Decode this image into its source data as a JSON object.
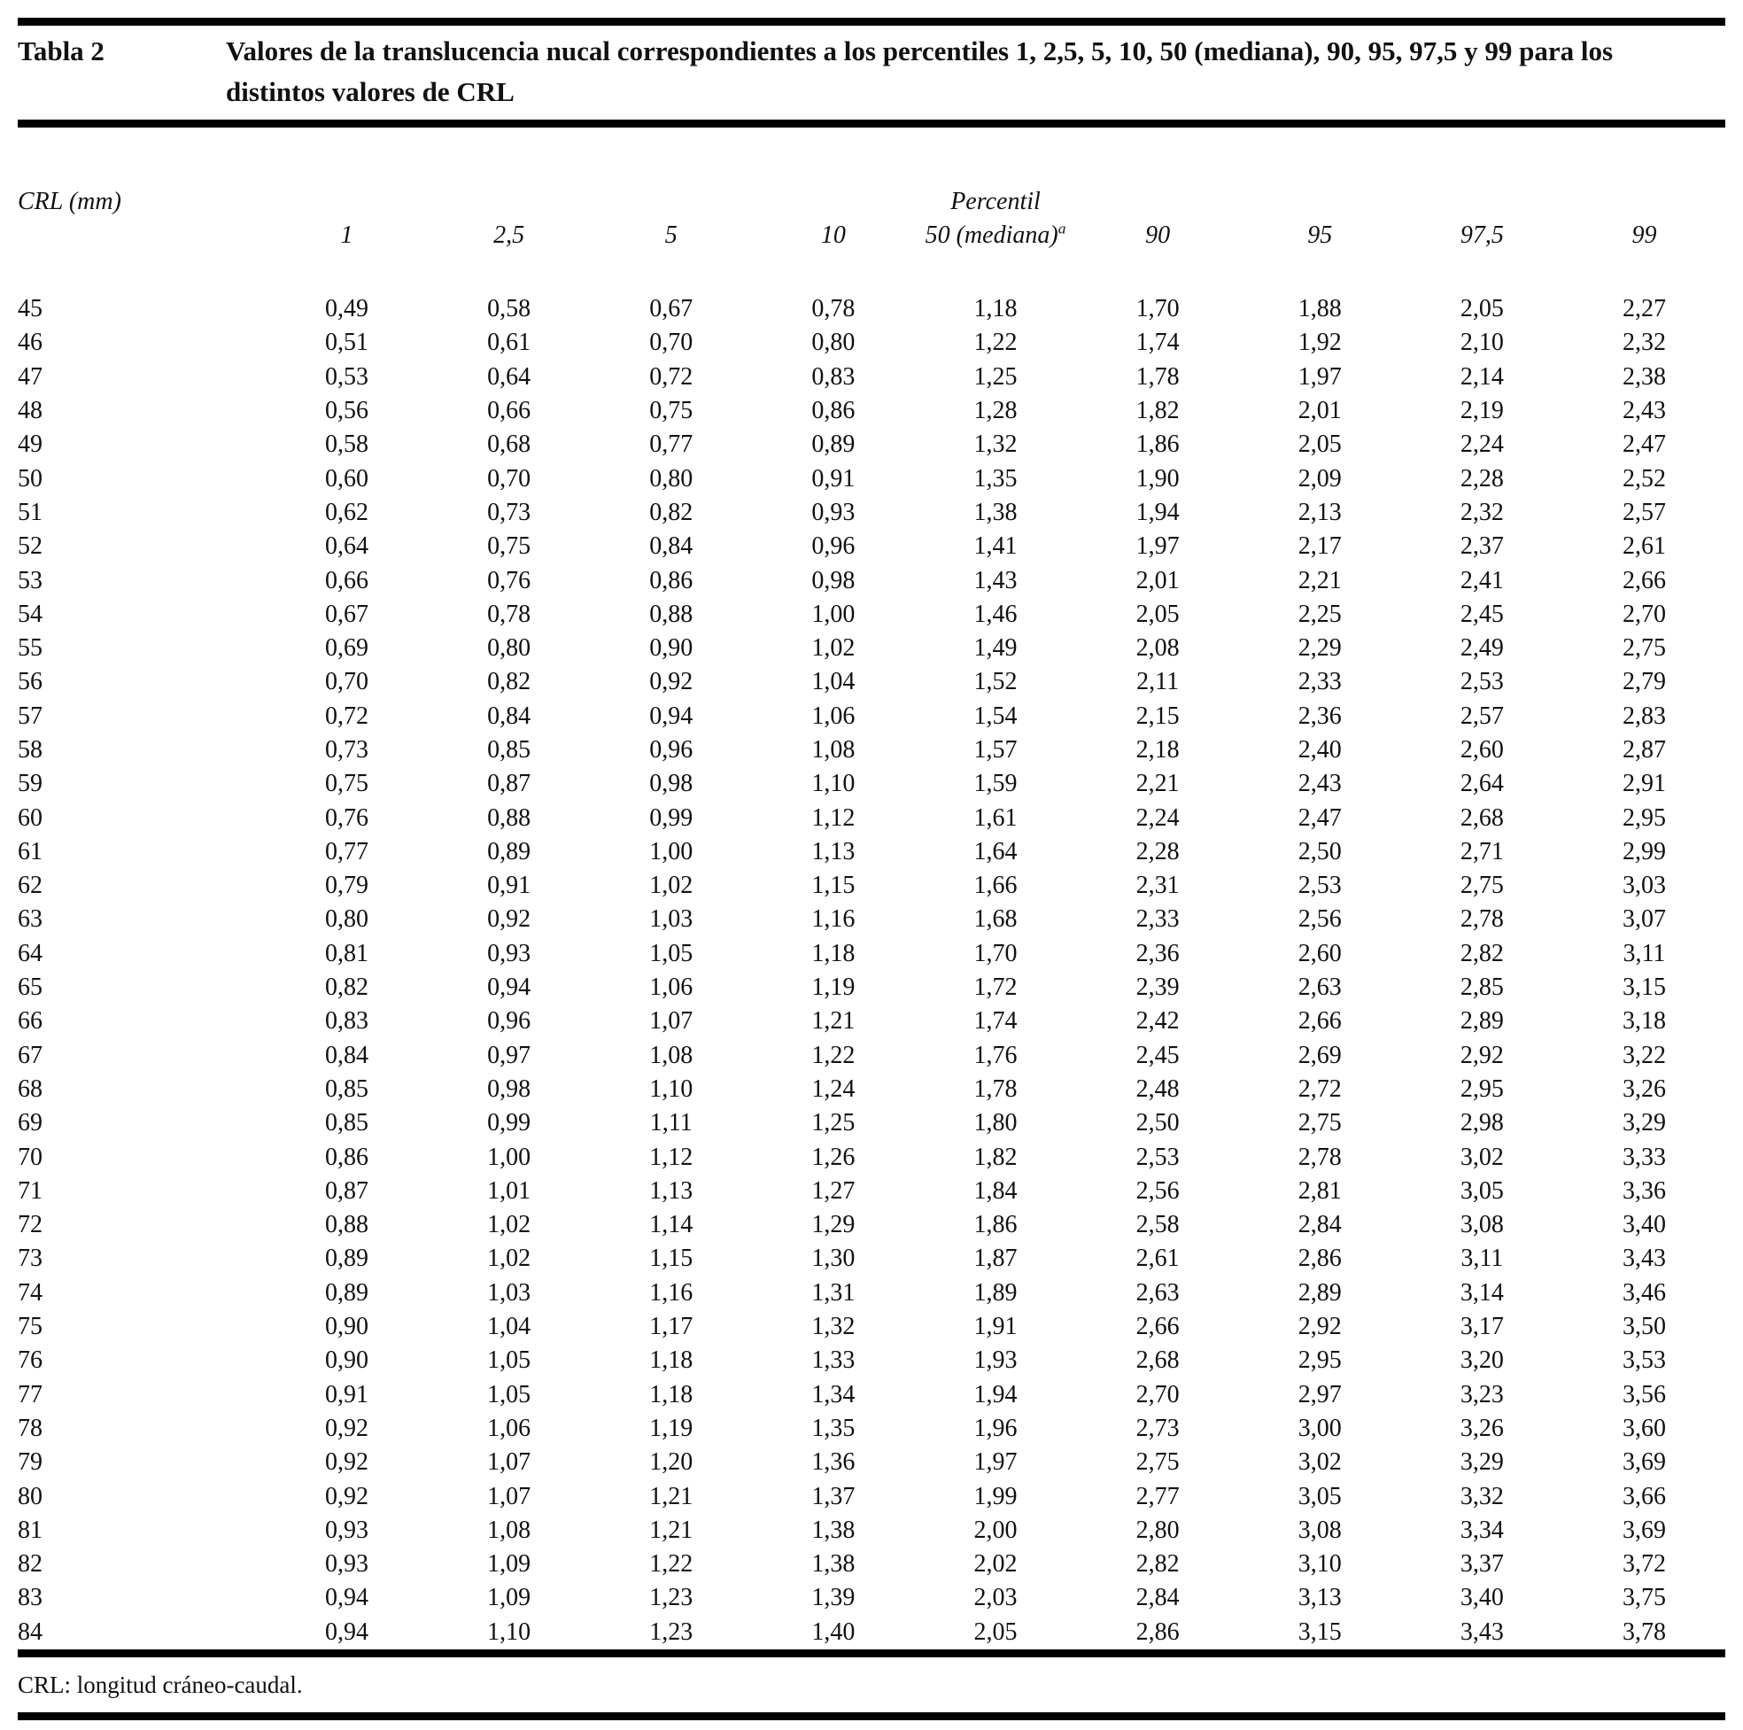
{
  "table": {
    "label": "Tabla 2",
    "title": "Valores de la translucencia nucal correspondientes a los percentiles 1, 2,5, 5, 10, 50 (mediana), 90, 95, 97,5 y 99 para los distintos valores de CRL",
    "col_group_left": "CRL (mm)",
    "col_group_right": "Percentil",
    "columns": [
      {
        "label": "1"
      },
      {
        "label": "2,5"
      },
      {
        "label": "5"
      },
      {
        "label": "10"
      },
      {
        "label": "50 (mediana)",
        "sup": "a"
      },
      {
        "label": "90"
      },
      {
        "label": "95"
      },
      {
        "label": "97,5"
      },
      {
        "label": "99"
      }
    ],
    "rows": [
      {
        "crl": "45",
        "values": [
          "0,49",
          "0,58",
          "0,67",
          "0,78",
          "1,18",
          "1,70",
          "1,88",
          "2,05",
          "2,27"
        ]
      },
      {
        "crl": "46",
        "values": [
          "0,51",
          "0,61",
          "0,70",
          "0,80",
          "1,22",
          "1,74",
          "1,92",
          "2,10",
          "2,32"
        ]
      },
      {
        "crl": "47",
        "values": [
          "0,53",
          "0,64",
          "0,72",
          "0,83",
          "1,25",
          "1,78",
          "1,97",
          "2,14",
          "2,38"
        ]
      },
      {
        "crl": "48",
        "values": [
          "0,56",
          "0,66",
          "0,75",
          "0,86",
          "1,28",
          "1,82",
          "2,01",
          "2,19",
          "2,43"
        ]
      },
      {
        "crl": "49",
        "values": [
          "0,58",
          "0,68",
          "0,77",
          "0,89",
          "1,32",
          "1,86",
          "2,05",
          "2,24",
          "2,47"
        ]
      },
      {
        "crl": "50",
        "values": [
          "0,60",
          "0,70",
          "0,80",
          "0,91",
          "1,35",
          "1,90",
          "2,09",
          "2,28",
          "2,52"
        ]
      },
      {
        "crl": "51",
        "values": [
          "0,62",
          "0,73",
          "0,82",
          "0,93",
          "1,38",
          "1,94",
          "2,13",
          "2,32",
          "2,57"
        ]
      },
      {
        "crl": "52",
        "values": [
          "0,64",
          "0,75",
          "0,84",
          "0,96",
          "1,41",
          "1,97",
          "2,17",
          "2,37",
          "2,61"
        ]
      },
      {
        "crl": "53",
        "values": [
          "0,66",
          "0,76",
          "0,86",
          "0,98",
          "1,43",
          "2,01",
          "2,21",
          "2,41",
          "2,66"
        ]
      },
      {
        "crl": "54",
        "values": [
          "0,67",
          "0,78",
          "0,88",
          "1,00",
          "1,46",
          "2,05",
          "2,25",
          "2,45",
          "2,70"
        ]
      },
      {
        "crl": "55",
        "values": [
          "0,69",
          "0,80",
          "0,90",
          "1,02",
          "1,49",
          "2,08",
          "2,29",
          "2,49",
          "2,75"
        ]
      },
      {
        "crl": "56",
        "values": [
          "0,70",
          "0,82",
          "0,92",
          "1,04",
          "1,52",
          "2,11",
          "2,33",
          "2,53",
          "2,79"
        ]
      },
      {
        "crl": "57",
        "values": [
          "0,72",
          "0,84",
          "0,94",
          "1,06",
          "1,54",
          "2,15",
          "2,36",
          "2,57",
          "2,83"
        ]
      },
      {
        "crl": "58",
        "values": [
          "0,73",
          "0,85",
          "0,96",
          "1,08",
          "1,57",
          "2,18",
          "2,40",
          "2,60",
          "2,87"
        ]
      },
      {
        "crl": "59",
        "values": [
          "0,75",
          "0,87",
          "0,98",
          "1,10",
          "1,59",
          "2,21",
          "2,43",
          "2,64",
          "2,91"
        ]
      },
      {
        "crl": "60",
        "values": [
          "0,76",
          "0,88",
          "0,99",
          "1,12",
          "1,61",
          "2,24",
          "2,47",
          "2,68",
          "2,95"
        ]
      },
      {
        "crl": "61",
        "values": [
          "0,77",
          "0,89",
          "1,00",
          "1,13",
          "1,64",
          "2,28",
          "2,50",
          "2,71",
          "2,99"
        ]
      },
      {
        "crl": "62",
        "values": [
          "0,79",
          "0,91",
          "1,02",
          "1,15",
          "1,66",
          "2,31",
          "2,53",
          "2,75",
          "3,03"
        ]
      },
      {
        "crl": "63",
        "values": [
          "0,80",
          "0,92",
          "1,03",
          "1,16",
          "1,68",
          "2,33",
          "2,56",
          "2,78",
          "3,07"
        ]
      },
      {
        "crl": "64",
        "values": [
          "0,81",
          "0,93",
          "1,05",
          "1,18",
          "1,70",
          "2,36",
          "2,60",
          "2,82",
          "3,11"
        ]
      },
      {
        "crl": "65",
        "values": [
          "0,82",
          "0,94",
          "1,06",
          "1,19",
          "1,72",
          "2,39",
          "2,63",
          "2,85",
          "3,15"
        ]
      },
      {
        "crl": "66",
        "values": [
          "0,83",
          "0,96",
          "1,07",
          "1,21",
          "1,74",
          "2,42",
          "2,66",
          "2,89",
          "3,18"
        ]
      },
      {
        "crl": "67",
        "values": [
          "0,84",
          "0,97",
          "1,08",
          "1,22",
          "1,76",
          "2,45",
          "2,69",
          "2,92",
          "3,22"
        ]
      },
      {
        "crl": "68",
        "values": [
          "0,85",
          "0,98",
          "1,10",
          "1,24",
          "1,78",
          "2,48",
          "2,72",
          "2,95",
          "3,26"
        ]
      },
      {
        "crl": "69",
        "values": [
          "0,85",
          "0,99",
          "1,11",
          "1,25",
          "1,80",
          "2,50",
          "2,75",
          "2,98",
          "3,29"
        ]
      },
      {
        "crl": "70",
        "values": [
          "0,86",
          "1,00",
          "1,12",
          "1,26",
          "1,82",
          "2,53",
          "2,78",
          "3,02",
          "3,33"
        ]
      },
      {
        "crl": "71",
        "values": [
          "0,87",
          "1,01",
          "1,13",
          "1,27",
          "1,84",
          "2,56",
          "2,81",
          "3,05",
          "3,36"
        ]
      },
      {
        "crl": "72",
        "values": [
          "0,88",
          "1,02",
          "1,14",
          "1,29",
          "1,86",
          "2,58",
          "2,84",
          "3,08",
          "3,40"
        ]
      },
      {
        "crl": "73",
        "values": [
          "0,89",
          "1,02",
          "1,15",
          "1,30",
          "1,87",
          "2,61",
          "2,86",
          "3,11",
          "3,43"
        ]
      },
      {
        "crl": "74",
        "values": [
          "0,89",
          "1,03",
          "1,16",
          "1,31",
          "1,89",
          "2,63",
          "2,89",
          "3,14",
          "3,46"
        ]
      },
      {
        "crl": "75",
        "values": [
          "0,90",
          "1,04",
          "1,17",
          "1,32",
          "1,91",
          "2,66",
          "2,92",
          "3,17",
          "3,50"
        ]
      },
      {
        "crl": "76",
        "values": [
          "0,90",
          "1,05",
          "1,18",
          "1,33",
          "1,93",
          "2,68",
          "2,95",
          "3,20",
          "3,53"
        ]
      },
      {
        "crl": "77",
        "values": [
          "0,91",
          "1,05",
          "1,18",
          "1,34",
          "1,94",
          "2,70",
          "2,97",
          "3,23",
          "3,56"
        ]
      },
      {
        "crl": "78",
        "values": [
          "0,92",
          "1,06",
          "1,19",
          "1,35",
          "1,96",
          "2,73",
          "3,00",
          "3,26",
          "3,60"
        ]
      },
      {
        "crl": "79",
        "values": [
          "0,92",
          "1,07",
          "1,20",
          "1,36",
          "1,97",
          "2,75",
          "3,02",
          "3,29",
          "3,69"
        ]
      },
      {
        "crl": "80",
        "values": [
          "0,92",
          "1,07",
          "1,21",
          "1,37",
          "1,99",
          "2,77",
          "3,05",
          "3,32",
          "3,66"
        ]
      },
      {
        "crl": "81",
        "values": [
          "0,93",
          "1,08",
          "1,21",
          "1,38",
          "2,00",
          "2,80",
          "3,08",
          "3,34",
          "3,69"
        ]
      },
      {
        "crl": "82",
        "values": [
          "0,93",
          "1,09",
          "1,22",
          "1,38",
          "2,02",
          "2,82",
          "3,10",
          "3,37",
          "3,72"
        ]
      },
      {
        "crl": "83",
        "values": [
          "0,94",
          "1,09",
          "1,23",
          "1,39",
          "2,03",
          "2,84",
          "3,13",
          "3,40",
          "3,75"
        ]
      },
      {
        "crl": "84",
        "values": [
          "0,94",
          "1,10",
          "1,23",
          "1,40",
          "2,05",
          "2,86",
          "3,15",
          "3,43",
          "3,78"
        ]
      }
    ],
    "footnote": "CRL: longitud cráneo-caudal."
  }
}
